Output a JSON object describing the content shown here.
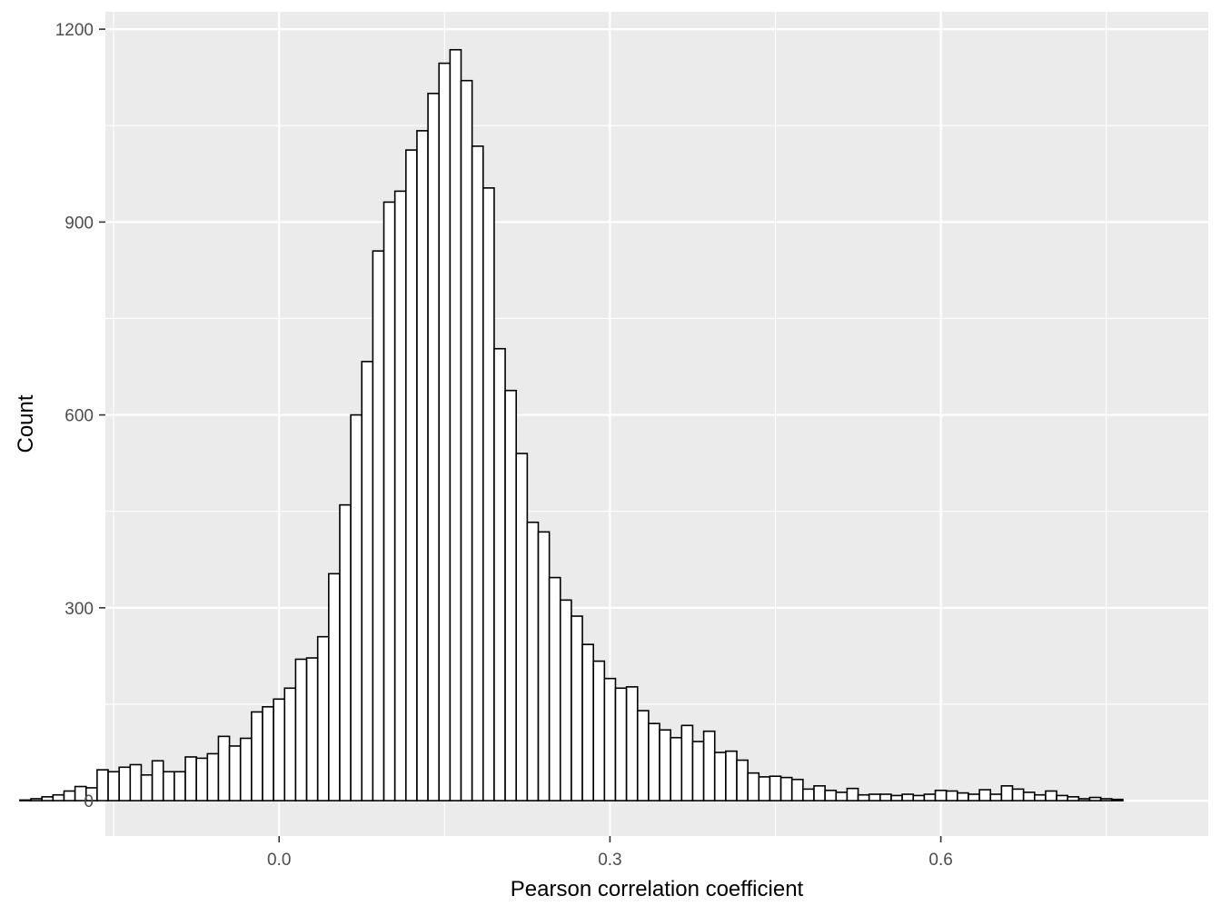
{
  "chart_data": {
    "type": "bar",
    "subtype": "histogram",
    "title": "",
    "xlabel": "Pearson correlation coefficient",
    "ylabel": "Count",
    "xlim": [
      -0.1575,
      0.8425
    ],
    "ylim": [
      -55,
      1227
    ],
    "x_ticks": [
      0.0,
      0.3,
      0.6
    ],
    "x_tick_labels": [
      "0.0",
      "0.3",
      "0.6"
    ],
    "x_minor_ticks": [
      -0.15,
      0.15,
      0.45,
      0.75
    ],
    "y_ticks": [
      0,
      300,
      600,
      900,
      1200
    ],
    "y_tick_labels": [
      "0",
      "300",
      "600",
      "900",
      "1200"
    ],
    "y_minor_ticks": [
      150,
      450,
      750,
      1050
    ],
    "bin_width": 0.01,
    "bin_start": -0.235,
    "grid": true,
    "legend": "none",
    "colors": {
      "panel_background": "#ebebeb",
      "grid_line": "#ffffff",
      "bar_fill": "#ffffff",
      "bar_outline": "#000000",
      "tick_text": "#4d4d4d",
      "title_text": "#000000"
    },
    "values": [
      1,
      3,
      6,
      9,
      15,
      22,
      20,
      48,
      45,
      52,
      56,
      40,
      62,
      45,
      45,
      68,
      66,
      73,
      100,
      85,
      97,
      138,
      146,
      158,
      175,
      220,
      222,
      255,
      353,
      460,
      600,
      683,
      855,
      931,
      948,
      1012,
      1042,
      1100,
      1147,
      1168,
      1120,
      1018,
      953,
      703,
      638,
      540,
      433,
      418,
      347,
      312,
      287,
      243,
      217,
      190,
      175,
      177,
      140,
      120,
      110,
      98,
      117,
      92,
      108,
      75,
      77,
      63,
      43,
      37,
      38,
      36,
      33,
      18,
      23,
      16,
      13,
      19,
      9,
      10,
      10,
      8,
      10,
      8,
      10,
      16,
      15,
      12,
      10,
      17,
      10,
      23,
      18,
      13,
      9,
      15,
      8,
      6,
      3,
      5,
      3,
      2
    ]
  }
}
